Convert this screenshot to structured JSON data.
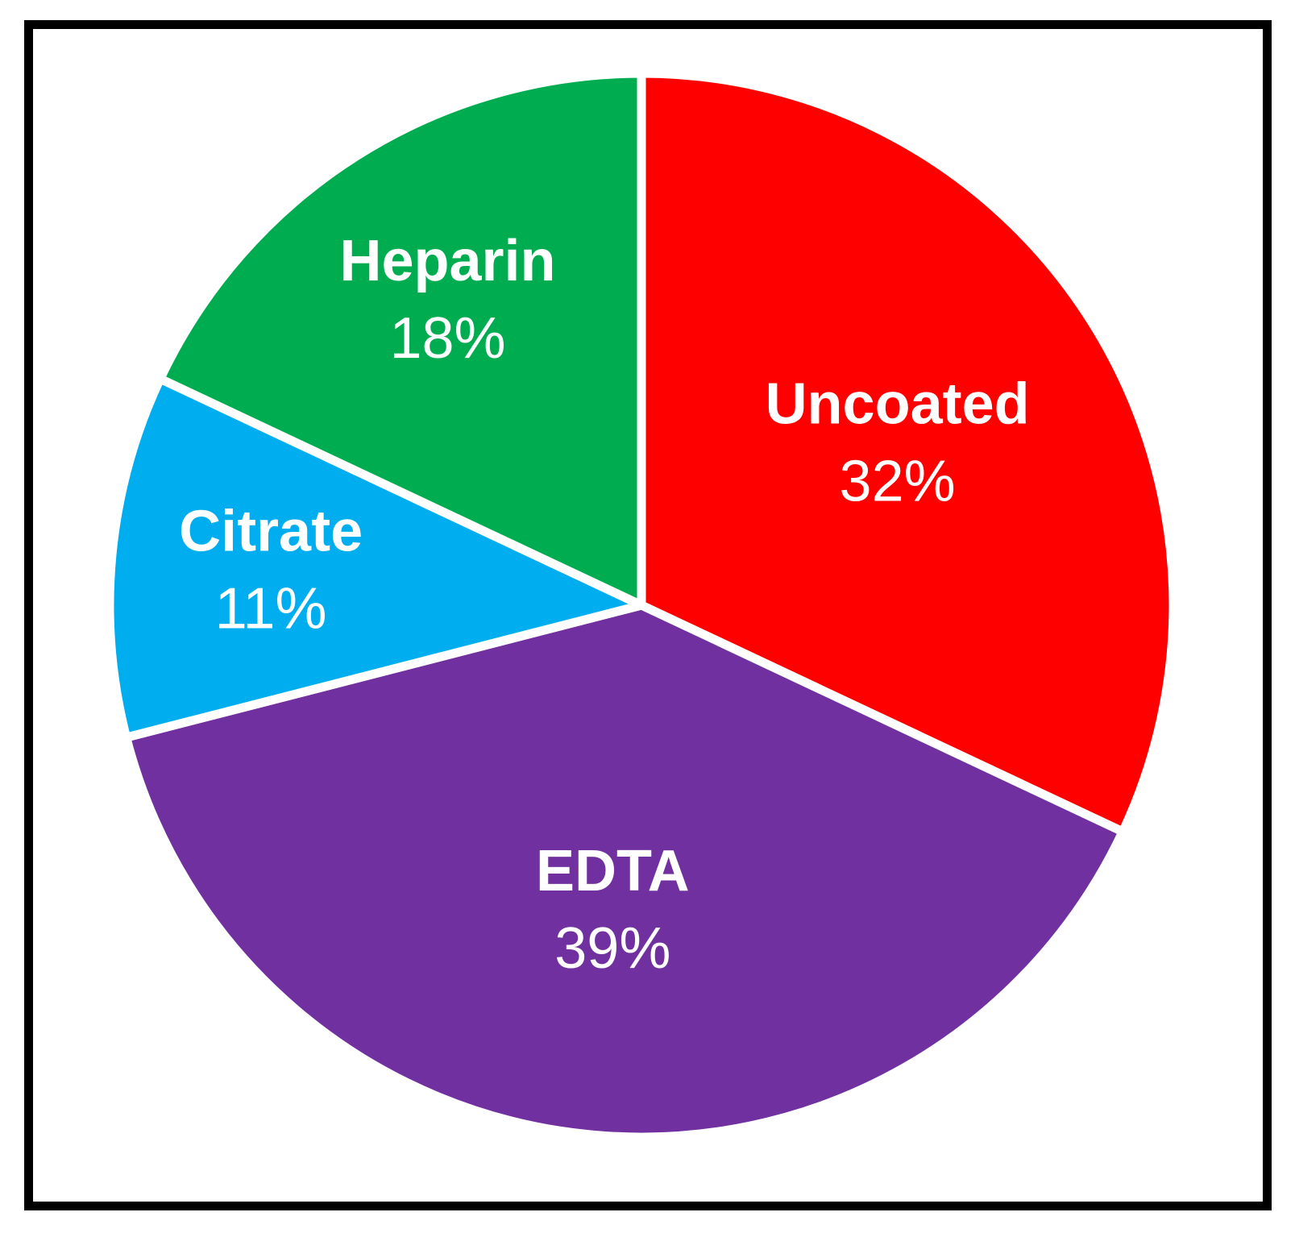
{
  "chart_data": {
    "type": "pie",
    "title": "",
    "legend": "none",
    "start_angle_deg": 0,
    "direction": "clockwise",
    "label_style": "inside, two lines: bold name over percent",
    "label_color": "#FFFFFF",
    "separator_color": "#FFFFFF",
    "background_color": "#FFFFFF",
    "frame_border_color": "#000000",
    "slices": [
      {
        "label": "Uncoated",
        "value": 32,
        "display": "32%",
        "color": "#FF0000",
        "label_r": 0.57
      },
      {
        "label": "EDTA",
        "value": 39,
        "display": "39%",
        "color": "#7030A0",
        "label_r": 0.575
      },
      {
        "label": "Citrate",
        "value": 11,
        "display": "11%",
        "color": "#00AEEF",
        "label_r": 0.7
      },
      {
        "label": "Heparin",
        "value": 18,
        "display": "18%",
        "color": "#00AC50",
        "label_r": 0.68
      }
    ]
  }
}
